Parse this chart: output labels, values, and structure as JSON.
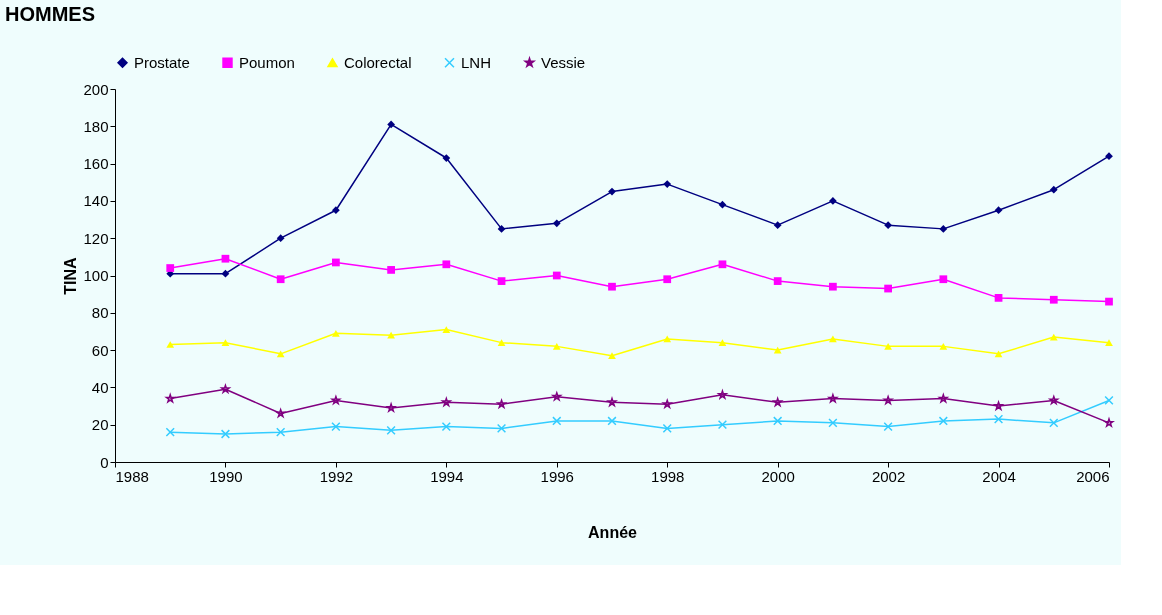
{
  "chart_data": {
    "type": "line",
    "title": "HOMMES",
    "xlabel": "Année",
    "ylabel": "TINA",
    "x": [
      1989,
      1990,
      1991,
      1992,
      1993,
      1994,
      1995,
      1996,
      1997,
      1998,
      1999,
      2000,
      2001,
      2002,
      2003,
      2004,
      2005,
      2006
    ],
    "xlim": [
      1988,
      2006
    ],
    "xticks": [
      1988,
      1990,
      1992,
      1994,
      1996,
      1998,
      2000,
      2002,
      2004,
      2006
    ],
    "ylim": [
      0,
      200
    ],
    "yticks": [
      0,
      20,
      40,
      60,
      80,
      100,
      120,
      140,
      160,
      180,
      200
    ],
    "grid": false,
    "legend": "top",
    "line_style": "solid",
    "series": [
      {
        "name": "Prostate",
        "color": "#000080",
        "marker": "diamond",
        "values": [
          101,
          101,
          120,
          135,
          181,
          163,
          125,
          128,
          145,
          149,
          138,
          127,
          140,
          127,
          125,
          135,
          146,
          164
        ]
      },
      {
        "name": "Poumon",
        "color": "#ff00ff",
        "marker": "square",
        "values": [
          104,
          109,
          98,
          107,
          103,
          106,
          97,
          100,
          94,
          98,
          106,
          97,
          94,
          93,
          98,
          88,
          87,
          86
        ]
      },
      {
        "name": "Colorectal",
        "color": "#ffff00",
        "marker": "triangle",
        "values": [
          63,
          64,
          58,
          69,
          68,
          71,
          64,
          62,
          57,
          66,
          64,
          60,
          66,
          62,
          62,
          58,
          67,
          64
        ]
      },
      {
        "name": "LNH",
        "color": "#33ccff",
        "marker": "cross",
        "values": [
          16,
          15,
          16,
          19,
          17,
          19,
          18,
          22,
          22,
          18,
          20,
          22,
          21,
          19,
          22,
          23,
          21,
          33
        ]
      },
      {
        "name": "Vessie",
        "color": "#800080",
        "marker": "star",
        "values": [
          34,
          39,
          26,
          33,
          29,
          32,
          31,
          35,
          32,
          31,
          36,
          32,
          34,
          33,
          34,
          30,
          33,
          21
        ]
      }
    ]
  }
}
